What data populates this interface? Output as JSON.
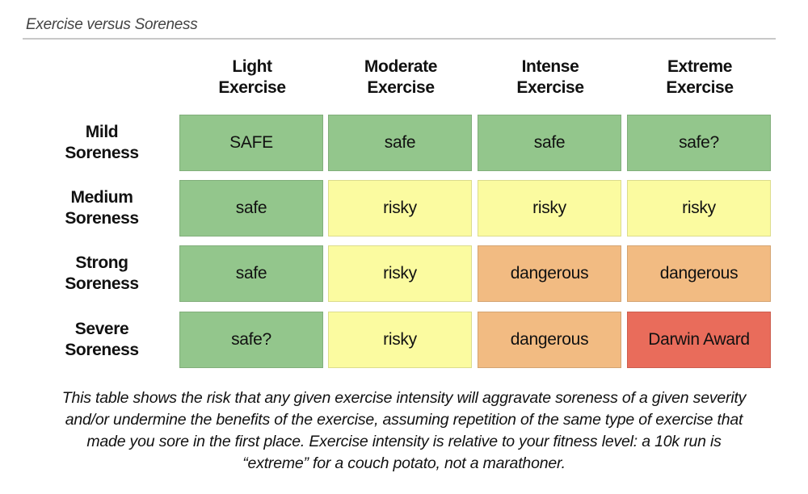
{
  "title": "Exercise versus Soreness",
  "columns": [
    {
      "line1": "Light",
      "line2": "Exercise"
    },
    {
      "line1": "Moderate",
      "line2": "Exercise"
    },
    {
      "line1": "Intense",
      "line2": "Exercise"
    },
    {
      "line1": "Extreme",
      "line2": "Exercise"
    }
  ],
  "rows": [
    {
      "line1": "Mild",
      "line2": "Soreness",
      "cells": [
        {
          "text": "SAFE",
          "color": "#93c68c"
        },
        {
          "text": "safe",
          "color": "#93c68c"
        },
        {
          "text": "safe",
          "color": "#93c68c"
        },
        {
          "text": "safe?",
          "color": "#93c68c"
        }
      ]
    },
    {
      "line1": "Medium",
      "line2": "Soreness",
      "cells": [
        {
          "text": "safe",
          "color": "#93c68c"
        },
        {
          "text": "risky",
          "color": "#fbfba0"
        },
        {
          "text": "risky",
          "color": "#fbfba0"
        },
        {
          "text": "risky",
          "color": "#fbfba0"
        }
      ]
    },
    {
      "line1": "Strong",
      "line2": "Soreness",
      "cells": [
        {
          "text": "safe",
          "color": "#93c68c"
        },
        {
          "text": "risky",
          "color": "#fbfba0"
        },
        {
          "text": "dangerous",
          "color": "#f2bb82"
        },
        {
          "text": "dangerous",
          "color": "#f2bb82"
        }
      ]
    },
    {
      "line1": "Severe",
      "line2": "Soreness",
      "cells": [
        {
          "text": "safe?",
          "color": "#93c68c"
        },
        {
          "text": "risky",
          "color": "#fbfba0"
        },
        {
          "text": "dangerous",
          "color": "#f2bb82"
        },
        {
          "text": "Darwin Award",
          "color": "#e96c5b"
        }
      ]
    }
  ],
  "caption": [
    "This table shows the risk that any given exercise intensity will aggravate soreness of a given severity",
    "and/or undermine the benefits of the exercise, assuming repetition of the same type of exercise that",
    "made you sore in the first place. Exercise intensity is relative to your fitness level: a 10k run is",
    "“extreme” for a couch potato, not a marathoner."
  ]
}
